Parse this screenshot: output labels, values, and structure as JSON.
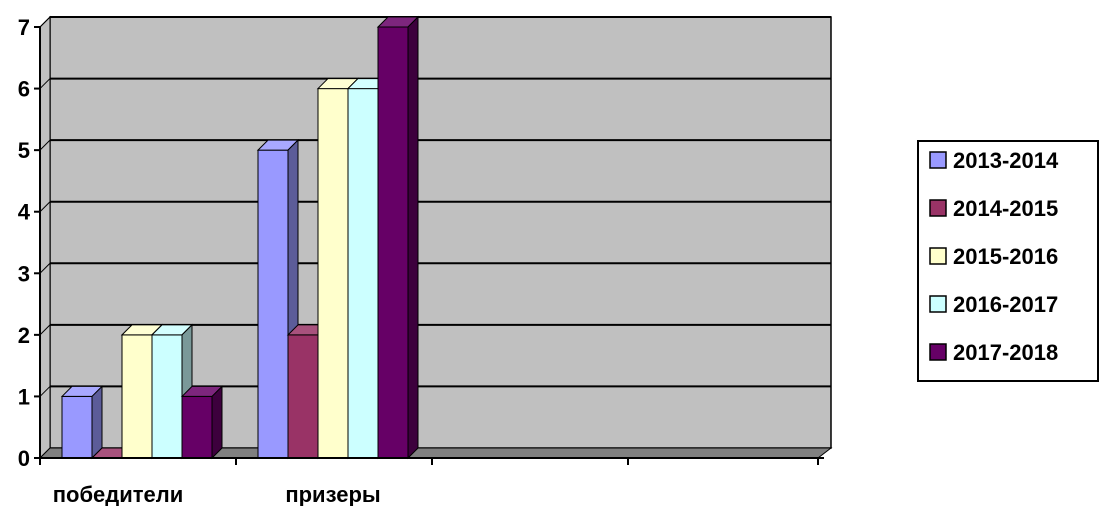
{
  "chart_data": {
    "type": "bar",
    "categories": [
      "победители",
      "призеры",
      "",
      ""
    ],
    "series": [
      {
        "name": "2013-2014",
        "values": [
          1,
          5,
          null,
          null
        ],
        "color": "#9999FF"
      },
      {
        "name": "2014-2015",
        "values": [
          0,
          2,
          null,
          null
        ],
        "color": "#993366"
      },
      {
        "name": "2015-2016",
        "values": [
          2,
          6,
          null,
          null
        ],
        "color": "#FFFFCC"
      },
      {
        "name": "2016-2017",
        "values": [
          2,
          6,
          null,
          null
        ],
        "color": "#CCFFFF"
      },
      {
        "name": "2017-2018",
        "values": [
          1,
          7,
          null,
          null
        ],
        "color": "#660066"
      }
    ],
    "y_ticks": [
      "0",
      "1",
      "2",
      "3",
      "4",
      "5",
      "6",
      "7"
    ],
    "ylim": [
      0,
      7
    ],
    "grid": true,
    "legend_position": "right",
    "plot_background": "#C0C0C0",
    "floor_color": "#808080"
  }
}
